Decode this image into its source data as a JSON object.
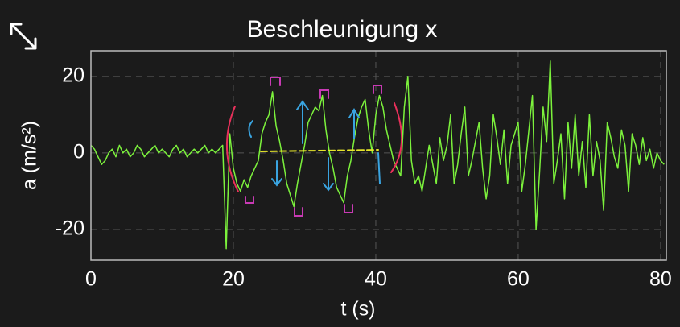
{
  "chart_data": {
    "type": "line",
    "title": "Beschleunigung x",
    "x_label": "t (s)",
    "y_label": "a (m/s²)",
    "x": [
      0,
      0.5,
      1,
      1.5,
      2,
      2.5,
      3,
      3.5,
      4,
      4.5,
      5,
      5.5,
      6,
      6.5,
      7,
      7.5,
      8,
      8.5,
      9,
      9.5,
      10,
      10.5,
      11,
      11.5,
      12,
      12.5,
      13,
      13.5,
      14,
      14.5,
      15,
      15.5,
      16,
      16.5,
      17,
      17.5,
      18,
      18.5,
      19,
      19.5,
      20,
      20.5,
      21,
      21.5,
      22,
      22.5,
      23,
      23.5,
      24,
      24.5,
      25,
      25.5,
      26,
      26.5,
      27,
      27.5,
      28,
      28.5,
      29,
      29.5,
      30,
      30.5,
      31,
      31.5,
      32,
      32.5,
      33,
      33.5,
      34,
      34.5,
      35,
      35.5,
      36,
      36.5,
      37,
      37.5,
      38,
      38.5,
      39,
      39.5,
      40,
      40.5,
      41,
      41.5,
      42,
      42.5,
      43,
      43.5,
      44,
      44.5,
      45,
      45.5,
      46,
      46.5,
      47,
      47.5,
      48,
      48.5,
      49,
      49.5,
      50,
      50.5,
      51,
      51.5,
      52,
      52.5,
      53,
      53.5,
      54,
      54.5,
      55,
      55.5,
      56,
      56.5,
      57,
      57.5,
      58,
      58.5,
      59,
      59.5,
      60,
      60.5,
      61,
      61.5,
      62,
      62.5,
      63,
      63.5,
      64,
      64.5,
      65,
      65.5,
      66,
      66.5,
      67,
      67.5,
      68,
      68.5,
      69,
      69.5,
      70,
      70.5,
      71,
      71.5,
      72,
      72.5,
      73,
      73.5,
      74,
      74.5,
      75,
      75.5,
      76,
      76.5,
      77,
      77.5,
      78,
      78.5,
      79,
      79.5,
      80,
      80.5
    ],
    "values": [
      2,
      1,
      -1,
      -3,
      -2,
      0,
      1,
      -1,
      2,
      0,
      1,
      -1,
      0,
      2,
      1,
      -1,
      0,
      1,
      2,
      0,
      1,
      0,
      -1,
      1,
      2,
      0,
      1,
      -1,
      0,
      1,
      0,
      1,
      2,
      0,
      1,
      0,
      1,
      2,
      -25,
      5,
      -4,
      -8,
      -10,
      -7,
      -9,
      -6,
      -4,
      -2,
      5,
      8,
      10,
      16,
      7,
      3,
      -2,
      -8,
      -11,
      -14,
      -8,
      -3,
      2,
      8,
      10,
      12,
      11,
      15,
      6,
      0,
      -4,
      -9,
      -11,
      -13,
      -6,
      -2,
      4,
      9,
      12,
      14,
      6,
      0,
      10,
      15,
      12,
      6,
      2,
      -2,
      -4,
      -6,
      12,
      20,
      -2,
      -8,
      -6,
      -10,
      -4,
      2,
      -3,
      -8,
      4,
      -2,
      2,
      10,
      -8,
      -3,
      5,
      12,
      -6,
      -2,
      3,
      8,
      -4,
      -12,
      -6,
      10,
      4,
      -3,
      6,
      -8,
      2,
      5,
      8,
      -10,
      -3,
      6,
      15,
      -20,
      -5,
      12,
      3,
      24,
      -8,
      -2,
      5,
      -12,
      8,
      -4,
      10,
      -6,
      3,
      -9,
      10,
      -6,
      3,
      -2,
      -15,
      8,
      4,
      -1,
      -4,
      6,
      2,
      -10,
      5,
      2,
      -3,
      4,
      -2,
      1,
      -4,
      0,
      -2,
      -3
    ],
    "color": "#7cf23c",
    "xlim": [
      0,
      80.8
    ],
    "ylim": [
      -28,
      26.7
    ],
    "xticks": [
      0,
      20,
      40,
      60,
      80
    ],
    "yticks": [
      -20,
      0,
      20
    ],
    "grid": true
  }
}
